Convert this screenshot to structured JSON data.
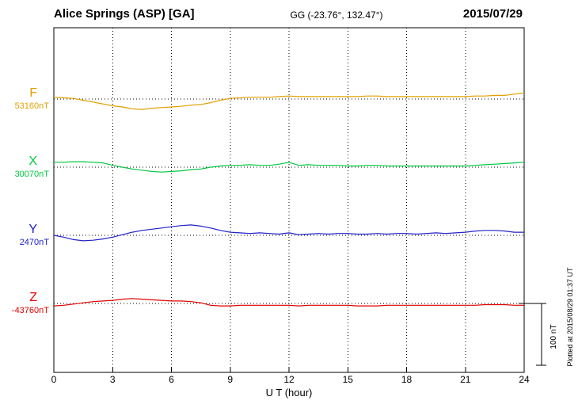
{
  "header": {
    "station": "Alice Springs (ASP)  [GA]",
    "coords": "GG (-23.76°, 132.47°)",
    "date": "2015/07/29"
  },
  "footer": {
    "xlabel": "U T (hour)"
  },
  "side_note": "Plotted at 2015/08/29 01:37 UT",
  "scale_bar": {
    "label": "100 nT",
    "nt": 100
  },
  "chart_data": {
    "type": "line",
    "title": "Alice Springs (ASP) magnetogram 2015/07/29",
    "xlabel": "U T (hour)",
    "xlim": [
      0,
      24
    ],
    "x_ticks": [
      0,
      3,
      6,
      9,
      12,
      15,
      18,
      21,
      24
    ],
    "grid": "dotted vertical lines at 3-hour ticks; dotted horizontal baseline per channel",
    "legend_position": "left margin channel labels",
    "sample_interval_hours": 0.5,
    "units": "nT offset from channel baseline",
    "series": [
      {
        "name": "F",
        "baseline_label": "53160nT",
        "color": "#e0a000",
        "values": [
          3,
          2,
          1,
          -2,
          -5,
          -8,
          -11,
          -13,
          -16,
          -17,
          -15,
          -14,
          -13,
          -12,
          -10,
          -9,
          -6,
          -2,
          1,
          2,
          3,
          3,
          3,
          4,
          5,
          4,
          4,
          4,
          4,
          4,
          4,
          4,
          5,
          5,
          4,
          4,
          4,
          4,
          4,
          4,
          4,
          4,
          4,
          5,
          5,
          6,
          6,
          8,
          10
        ]
      },
      {
        "name": "X",
        "baseline_label": "30070nT",
        "color": "#00c840",
        "values": [
          8,
          8,
          9,
          9,
          8,
          7,
          3,
          0,
          -3,
          -5,
          -7,
          -8,
          -7,
          -6,
          -4,
          -3,
          0,
          2,
          3,
          3,
          4,
          3,
          3,
          5,
          8,
          3,
          4,
          3,
          3,
          3,
          2,
          2,
          3,
          3,
          2,
          2,
          2,
          2,
          2,
          2,
          2,
          2,
          2,
          3,
          4,
          5,
          6,
          7,
          8
        ]
      },
      {
        "name": "Y",
        "baseline_label": "2470nT",
        "color": "#2020c8",
        "values": [
          0,
          -3,
          -7,
          -9,
          -8,
          -6,
          -3,
          1,
          5,
          8,
          10,
          12,
          14,
          16,
          17,
          15,
          12,
          8,
          5,
          4,
          3,
          4,
          3,
          2,
          4,
          1,
          2,
          3,
          2,
          3,
          3,
          2,
          2,
          3,
          2,
          3,
          3,
          2,
          3,
          4,
          3,
          4,
          5,
          7,
          8,
          8,
          7,
          5,
          5
        ]
      },
      {
        "name": "Z",
        "baseline_label": "-43760nT",
        "color": "#e00000",
        "values": [
          -4,
          -3,
          -1,
          1,
          3,
          4,
          5,
          7,
          8,
          7,
          6,
          5,
          4,
          4,
          3,
          1,
          -3,
          -4,
          -4,
          -3,
          -3,
          -3,
          -3,
          -3,
          -3,
          -4,
          -3,
          -3,
          -3,
          -3,
          -3,
          -4,
          -4,
          -4,
          -3,
          -3,
          -3,
          -3,
          -3,
          -3,
          -3,
          -3,
          -3,
          -3,
          -2,
          -2,
          -2,
          -3,
          -3
        ]
      }
    ]
  }
}
